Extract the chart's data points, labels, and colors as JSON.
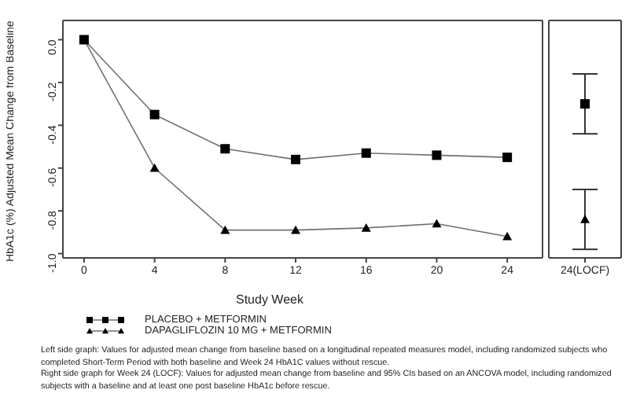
{
  "chart_data": [
    {
      "type": "line",
      "xlabel": "Study Week",
      "ylabel": "HbA1c (%) Adjusted Mean Change from Baseline",
      "x": [
        0,
        4,
        8,
        12,
        16,
        20,
        24
      ],
      "xlim": [
        -1.2,
        26
      ],
      "xticks": [
        0,
        4,
        8,
        12,
        16,
        20,
        24
      ],
      "ylim": [
        -1.02,
        0.09
      ],
      "yticks": [
        {
          "value": 0,
          "label": "0.0"
        },
        {
          "value": -0.2,
          "label": "-0.2"
        },
        {
          "value": -0.4,
          "label": "-0.4"
        },
        {
          "value": -0.6,
          "label": "-0.6"
        },
        {
          "value": -0.8,
          "label": "-0.8"
        },
        {
          "value": -1,
          "label": "-1.0"
        }
      ],
      "legend": "bottom",
      "grid": false,
      "series": [
        {
          "name": "PLACEBO + METFORMIN",
          "color": "#000000",
          "marker": "square",
          "values": [
            0,
            -0.35,
            -0.51,
            -0.56,
            -0.53,
            -0.54,
            -0.55
          ]
        },
        {
          "name": "DAPAGLIFLOZIN 10 MG + METFORMIN",
          "color": "#000000",
          "marker": "triangle",
          "values": [
            0,
            -0.6,
            -0.89,
            -0.89,
            -0.88,
            -0.86,
            -0.92
          ]
        }
      ],
      "annotations": [
        "Left side graph: Values for adjusted mean change from baseline based on a longitudinal repeated measures model, including randomized subjects who completed Short-Term Period with both baseline and Week 24 HbA1C values without rescue.",
        "Right side graph for Week 24 (LOCF): Values for adjusted mean change from baseline and 95% CIs based on an ANCOVA model, including randomized subjects with a baseline and at least one post baseline HbA1c before rescue."
      ]
    },
    {
      "type": "scatter",
      "categories": [
        "24(LOCF)"
      ],
      "ylim": [
        -1.02,
        0.09
      ],
      "tick_labels": "x",
      "grid": false,
      "series": [
        {
          "color": "#000000",
          "marker": "square",
          "values": [
            -0.3
          ],
          "errors": [
            [
              -0.44,
              -0.16
            ]
          ]
        },
        {
          "color": "#000000",
          "marker": "triangle",
          "values": [
            -0.84
          ],
          "errors": [
            [
              -0.98,
              -0.7
            ]
          ]
        }
      ]
    }
  ]
}
